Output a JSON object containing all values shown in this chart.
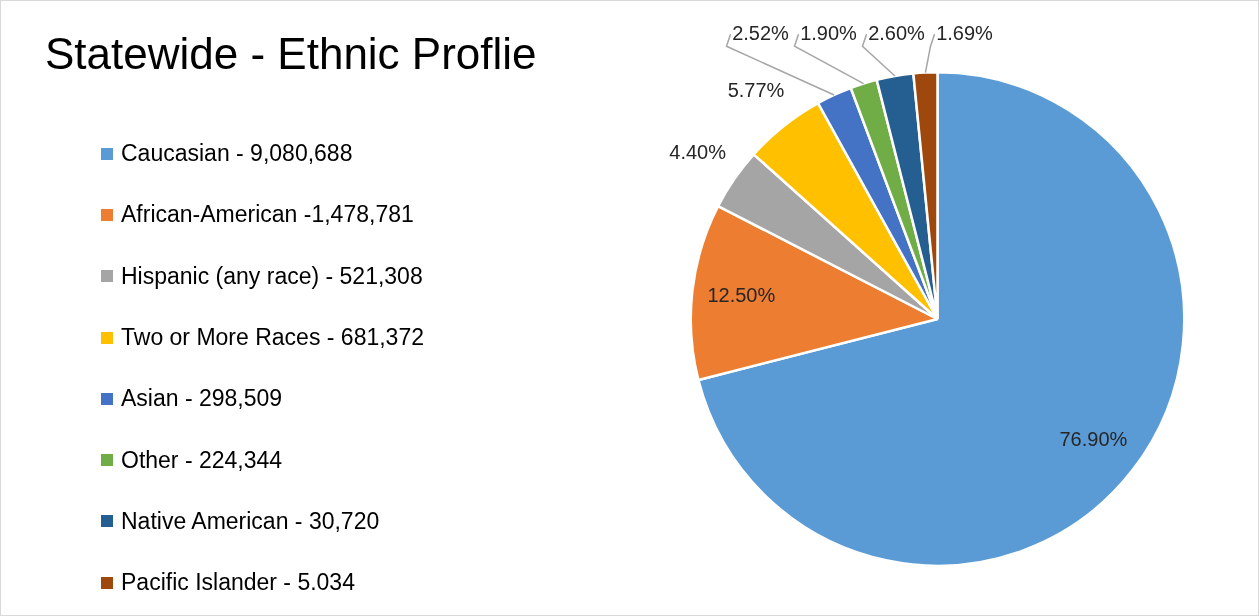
{
  "chart_data": {
    "type": "pie",
    "title": "Statewide - Ethnic Proflie",
    "categories": [
      "Caucasian - 9,080,688",
      "African-American -1,478,781",
      "Hispanic (any race) - 521,308",
      "Two or More Races - 681,372",
      "Asian - 298,509",
      "Other - 224,344",
      "Native American - 30,720",
      "Pacific Islander - 5.034"
    ],
    "values": [
      76.9,
      12.5,
      4.4,
      5.77,
      2.52,
      1.9,
      2.6,
      1.69
    ],
    "value_labels": [
      "76.90%",
      "12.50%",
      "4.40%",
      "5.77%",
      "2.52%",
      "1.90%",
      "2.60%",
      "1.69%"
    ],
    "colors": [
      "#5b9bd5",
      "#ed7d31",
      "#a5a5a5",
      "#ffc000",
      "#4472c4",
      "#70ad47",
      "#255e91",
      "#9e480e"
    ],
    "legend": "left"
  }
}
